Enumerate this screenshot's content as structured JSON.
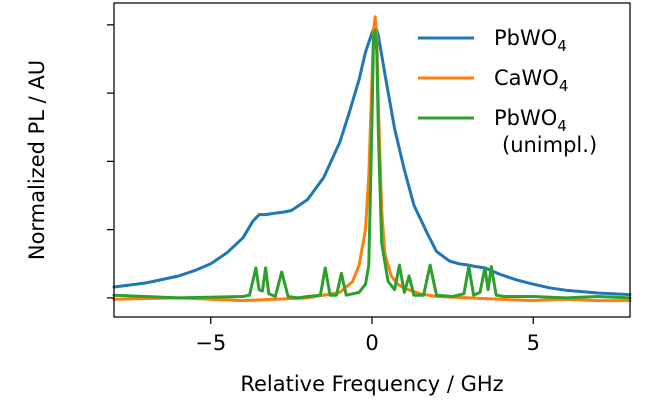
{
  "chart_data": {
    "type": "line",
    "title": "",
    "xlabel": "Relative Frequency / GHz",
    "ylabel": "Normalized PL / AU",
    "xlim": [
      -8,
      8
    ],
    "ylim": [
      -0.07,
      1.08
    ],
    "x_ticks": [
      -5,
      0,
      5
    ],
    "x_tick_labels": [
      "−5",
      "0",
      "5"
    ],
    "y_ticks": [
      0,
      0.25,
      0.5,
      0.75,
      1.0
    ],
    "y_tick_labels_shown": false,
    "grid": false,
    "legend_position": "top-right",
    "series": [
      {
        "name": "PbWO",
        "name_subscript": "4",
        "name_extra": "",
        "color": "#1f77b4",
        "x": [
          -8,
          -7,
          -6,
          -5.5,
          -5,
          -4.5,
          -4,
          -3.7,
          -3.5,
          -3.3,
          -3.0,
          -2.7,
          -2.5,
          -2.0,
          -1.5,
          -1.0,
          -0.7,
          -0.4,
          -0.2,
          0.0,
          0.1,
          0.2,
          0.4,
          0.7,
          1.0,
          1.3,
          1.7,
          2.0,
          2.4,
          2.7,
          3.0,
          3.2,
          3.5,
          3.7,
          4.0,
          4.5,
          5.0,
          5.5,
          6.0,
          7.0,
          8.0
        ],
        "y": [
          0.04,
          0.055,
          0.08,
          0.1,
          0.125,
          0.165,
          0.22,
          0.28,
          0.305,
          0.305,
          0.31,
          0.315,
          0.32,
          0.36,
          0.44,
          0.57,
          0.68,
          0.8,
          0.9,
          0.97,
          1.0,
          0.96,
          0.82,
          0.62,
          0.47,
          0.34,
          0.24,
          0.17,
          0.135,
          0.125,
          0.12,
          0.115,
          0.11,
          0.1,
          0.085,
          0.065,
          0.05,
          0.037,
          0.028,
          0.018,
          0.012
        ]
      },
      {
        "name": "CaWO",
        "name_subscript": "4",
        "name_extra": "",
        "color": "#ff7f0e",
        "x": [
          -8,
          -6,
          -4,
          -3,
          -2,
          -1.5,
          -1.0,
          -0.6,
          -0.4,
          -0.2,
          -0.1,
          0.0,
          0.05,
          0.1,
          0.15,
          0.2,
          0.3,
          0.4,
          0.6,
          0.8,
          1.0,
          1.5,
          2,
          3,
          4,
          5,
          6,
          7,
          8
        ],
        "y": [
          -0.005,
          0.0,
          -0.01,
          -0.005,
          0.0,
          0.01,
          0.02,
          0.06,
          0.12,
          0.25,
          0.45,
          0.8,
          0.98,
          1.03,
          0.95,
          0.7,
          0.32,
          0.16,
          0.08,
          0.05,
          0.035,
          0.015,
          0.005,
          0.0,
          -0.005,
          -0.01,
          -0.005,
          -0.01,
          -0.01
        ]
      },
      {
        "name": "PbWO",
        "name_subscript": "4",
        "name_extra": "(unimpl.)",
        "color": "#2ca02c",
        "x": [
          -8,
          -6,
          -4,
          -3.8,
          -3.6,
          -3.5,
          -3.4,
          -3.3,
          -3.2,
          -3.0,
          -2.8,
          -2.6,
          -2.3,
          -2.0,
          -1.6,
          -1.45,
          -1.3,
          -1.1,
          -0.95,
          -0.8,
          -0.6,
          -0.4,
          -0.2,
          -0.1,
          0.0,
          0.05,
          0.1,
          0.15,
          0.2,
          0.3,
          0.5,
          0.7,
          0.85,
          1.0,
          1.15,
          1.3,
          1.6,
          1.8,
          2.0,
          2.5,
          2.85,
          3.0,
          3.15,
          3.35,
          3.5,
          3.6,
          3.7,
          3.85,
          4.1,
          5,
          6,
          7,
          8
        ],
        "y": [
          0.01,
          0.0,
          0.005,
          0.01,
          0.11,
          0.03,
          0.025,
          0.11,
          0.015,
          0.005,
          0.095,
          0.005,
          0.0,
          0.005,
          0.01,
          0.11,
          0.01,
          0.01,
          0.09,
          0.01,
          0.015,
          0.02,
          0.05,
          0.12,
          0.65,
          0.96,
          0.98,
          0.9,
          0.6,
          0.2,
          0.06,
          0.03,
          0.12,
          0.02,
          0.08,
          0.01,
          0.01,
          0.12,
          0.01,
          0.005,
          0.015,
          0.115,
          0.01,
          0.02,
          0.11,
          0.03,
          0.115,
          0.01,
          0.005,
          0.005,
          0.0,
          0.005,
          0.0
        ]
      }
    ]
  }
}
